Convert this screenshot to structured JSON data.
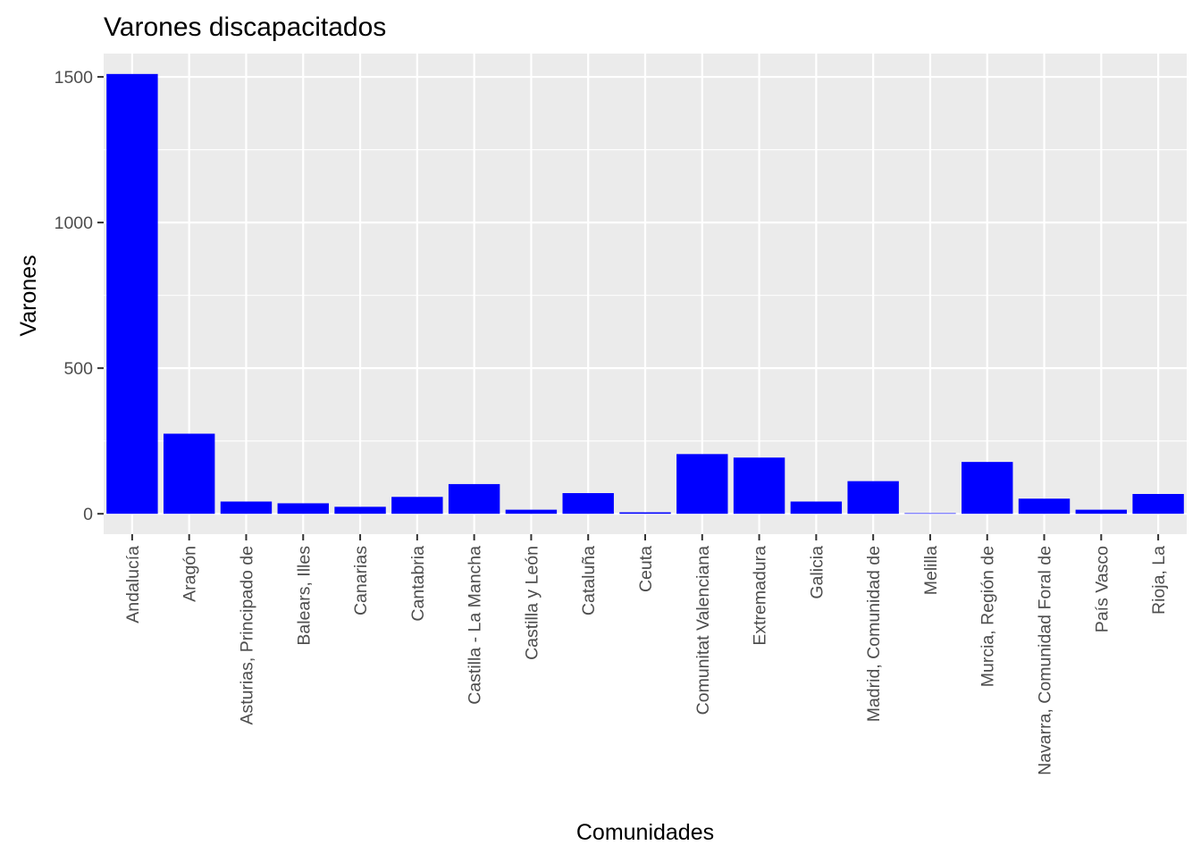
{
  "chart_data": {
    "type": "bar",
    "title": "Varones discapacitados",
    "xlabel": "Comunidades",
    "ylabel": "Varones",
    "categories": [
      "Andalucía",
      "Aragón",
      "Asturias, Principado de",
      "Balears, Illes",
      "Canarias",
      "Cantabria",
      "Castilla - La Mancha",
      "Castilla y León",
      "Cataluña",
      "Ceuta",
      "Comunitat Valenciana",
      "Extremadura",
      "Galicia",
      "Madrid, Comunidad de",
      "Melilla",
      "Murcia, Región de",
      "Navarra, Comunidad Foral de",
      "País Vasco",
      "Rioja, La"
    ],
    "values": [
      1510,
      275,
      42,
      36,
      24,
      58,
      102,
      14,
      71,
      5,
      205,
      193,
      42,
      112,
      2,
      178,
      52,
      14,
      68
    ],
    "y_ticks": [
      0,
      500,
      1000,
      1500
    ],
    "ylim": [
      -70,
      1580
    ],
    "grid": true,
    "bar_color": "#0000ff",
    "panel_color": "#ebebeb",
    "grid_color": "#ffffff"
  }
}
